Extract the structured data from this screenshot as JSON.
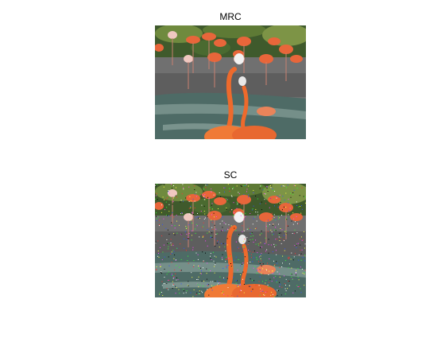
{
  "panels": [
    {
      "title": "MRC"
    },
    {
      "title": "SC"
    }
  ]
}
